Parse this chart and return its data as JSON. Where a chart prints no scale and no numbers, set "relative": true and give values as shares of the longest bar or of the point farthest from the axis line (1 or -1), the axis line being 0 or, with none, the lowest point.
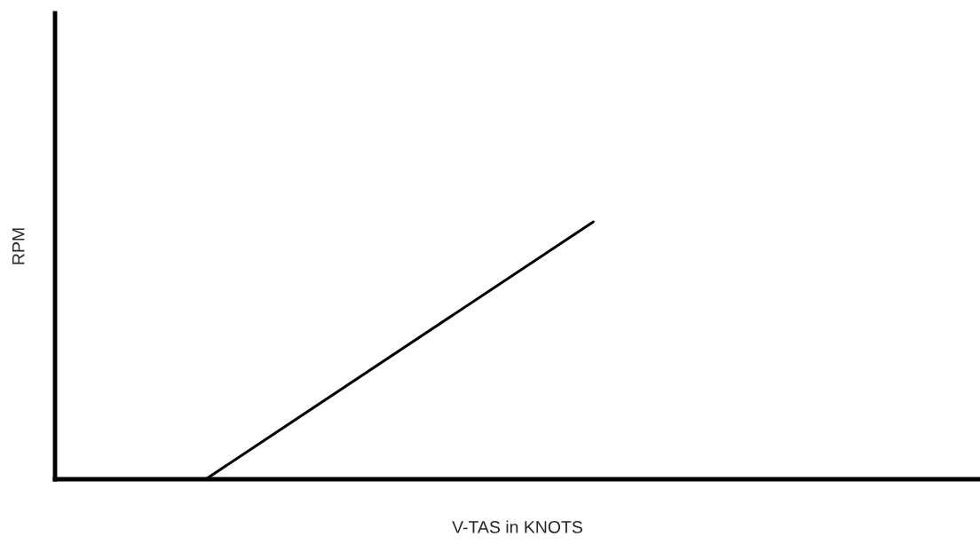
{
  "chart_data": {
    "type": "line",
    "relative": true,
    "xlabel": "V-TAS in KNOTS",
    "ylabel": "RPM",
    "categories": [
      null,
      null
    ],
    "series": [
      {
        "color": "#000000",
        "values": [
          0,
          1
        ]
      }
    ],
    "legend": false,
    "line_style": "solid"
  }
}
